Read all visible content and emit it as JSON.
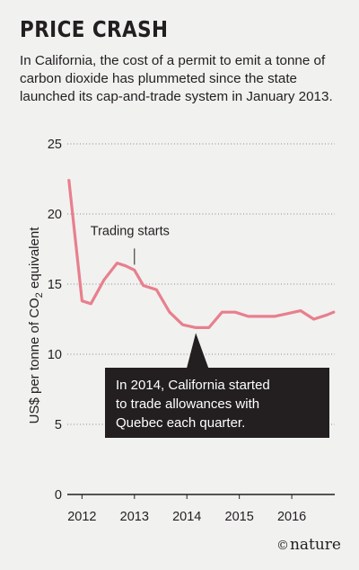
{
  "header": {
    "title": "PRICE CRASH",
    "subtitle": "In California, the cost of a permit to emit a tonne of carbon dioxide has plummeted since the state launched its cap-and-trade system in January 2013."
  },
  "credit": {
    "symbol": "©",
    "text": "nature"
  },
  "colors": {
    "line": "#e87f8d",
    "background": "#f1f1f0",
    "callout": "#231f20"
  },
  "chart_data": {
    "type": "line",
    "title": "PRICE CRASH",
    "ylabel_parts": {
      "before": "US$ per tonne of CO",
      "sub": "2",
      "after": " equivalent"
    },
    "x_ticks": [
      "2012",
      "2013",
      "2014",
      "2015",
      "2016"
    ],
    "x_tick_values": [
      2012.0,
      2013.0,
      2014.0,
      2015.0,
      2016.0
    ],
    "y_ticks": [
      "0",
      "5",
      "10",
      "15",
      "20",
      "25"
    ],
    "y_tick_values": [
      0,
      5,
      10,
      15,
      20,
      25
    ],
    "xlim": [
      2011.72,
      2016.82
    ],
    "ylim": [
      0,
      25
    ],
    "grid": "horizontal dotted",
    "x": [
      2011.75,
      2012.0,
      2012.17,
      2012.42,
      2012.67,
      2012.83,
      2013.0,
      2013.17,
      2013.42,
      2013.67,
      2013.92,
      2014.17,
      2014.42,
      2014.67,
      2014.92,
      2015.17,
      2015.42,
      2015.67,
      2015.92,
      2016.17,
      2016.42,
      2016.67,
      2016.8
    ],
    "y": [
      22.4,
      13.8,
      13.6,
      15.3,
      16.5,
      16.3,
      16.0,
      14.9,
      14.6,
      13.0,
      12.1,
      11.9,
      11.9,
      13.0,
      13.0,
      12.7,
      12.7,
      12.7,
      12.9,
      13.1,
      12.5,
      12.8,
      13.0
    ],
    "annotations": [
      {
        "text": "Trading starts",
        "x": 2013.0,
        "y": 16.0
      },
      {
        "lines": [
          "In 2014, California started",
          "to trade allowances with",
          "Quebec each quarter."
        ],
        "x": 2014.17,
        "y": 11.9
      }
    ]
  }
}
